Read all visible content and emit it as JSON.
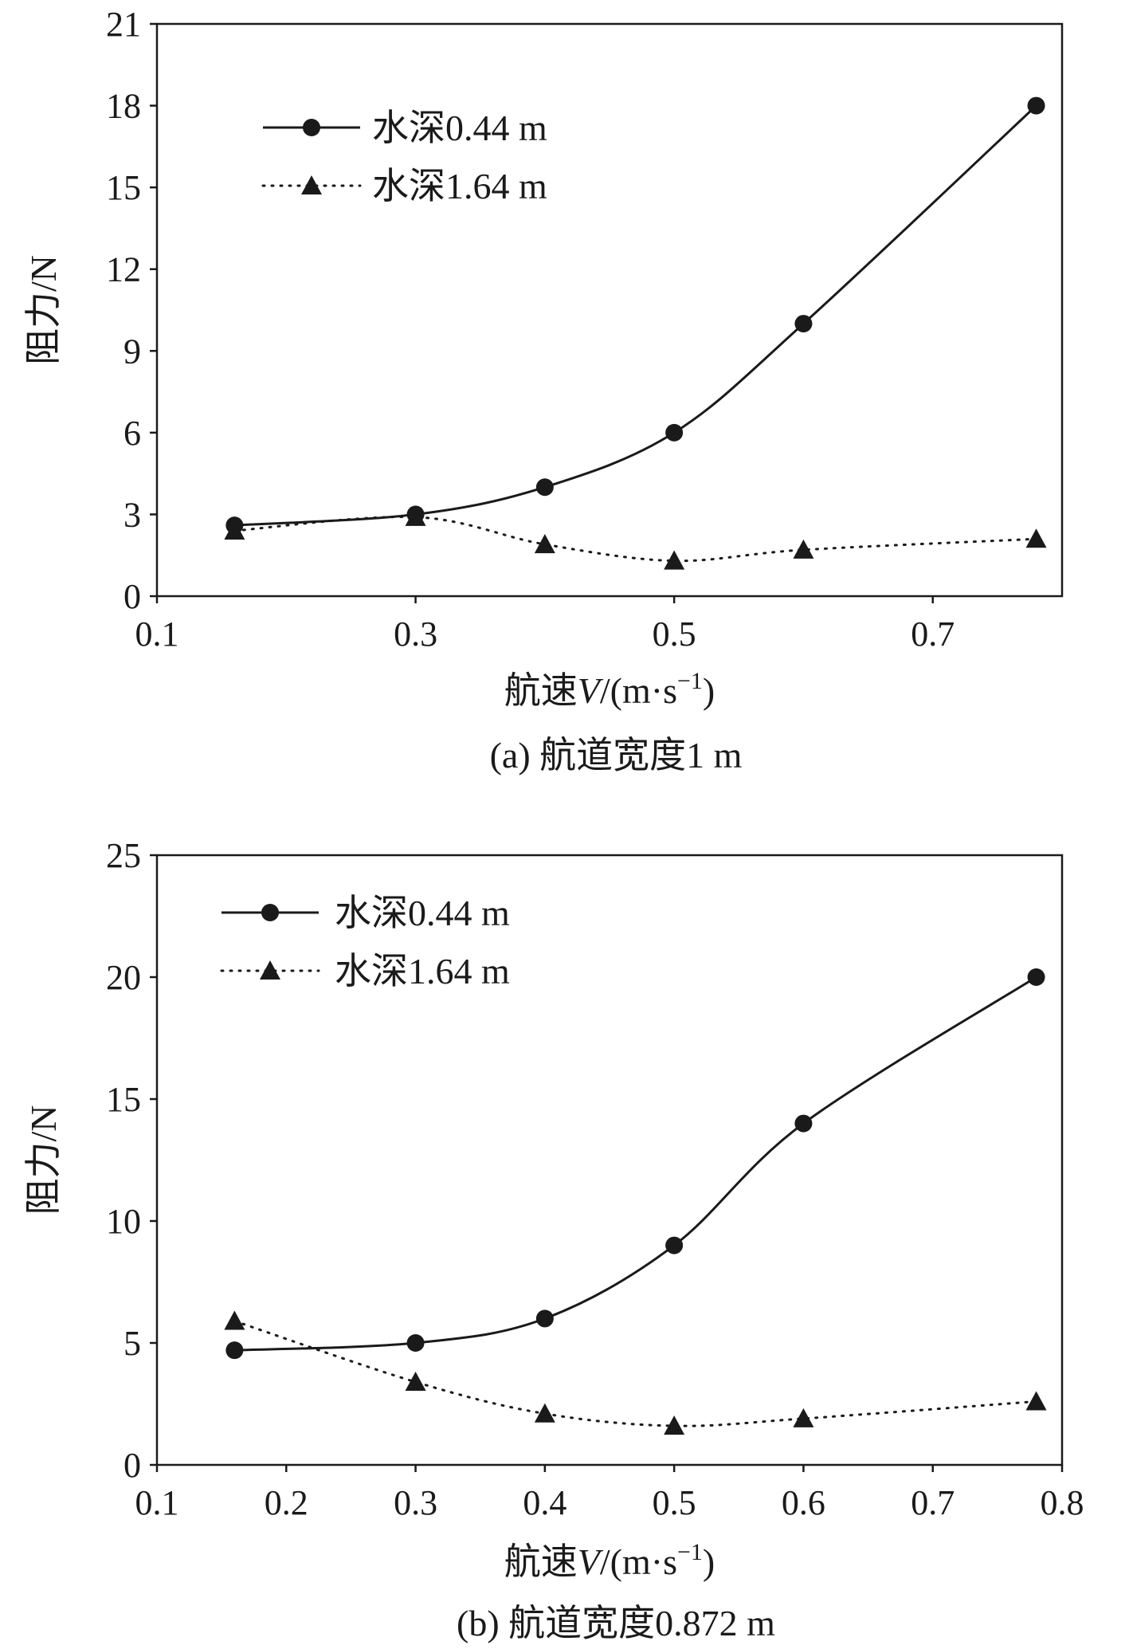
{
  "chart_data": [
    {
      "type": "line",
      "caption": "(a) 航道宽度1 m",
      "xlabel_prefix": "航速",
      "xlabel_var": "V",
      "xlabel_unit": "/(m·s",
      "xlabel_exp": "−1",
      "xlabel_close": ")",
      "ylabel": "阻力/N",
      "xlim": [
        0.1,
        0.8
      ],
      "ylim": [
        0,
        21
      ],
      "xticks": [
        0.1,
        0.3,
        0.5,
        0.7
      ],
      "xtick_labels": [
        "0.1",
        "0.3",
        "0.5",
        "0.7"
      ],
      "yticks": [
        0,
        3,
        6,
        9,
        12,
        15,
        18,
        21
      ],
      "ytick_labels": [
        "0",
        "3",
        "6",
        "9",
        "12",
        "15",
        "18",
        "21"
      ],
      "legend": "top-left",
      "series": [
        {
          "name": "水深0.44 m",
          "marker": "circle",
          "line": "solid",
          "smooth": true,
          "x": [
            0.16,
            0.3,
            0.4,
            0.5,
            0.6,
            0.78
          ],
          "y": [
            2.6,
            3.0,
            4.0,
            6.0,
            10.0,
            18.0
          ]
        },
        {
          "name": "水深1.64 m",
          "marker": "triangle",
          "line": "dotted",
          "smooth": true,
          "x": [
            0.16,
            0.3,
            0.4,
            0.5,
            0.6,
            0.78
          ],
          "y": [
            2.4,
            2.9,
            1.9,
            1.3,
            1.7,
            2.1
          ]
        }
      ]
    },
    {
      "type": "line",
      "caption": "(b) 航道宽度0.872 m",
      "xlabel_prefix": "航速",
      "xlabel_var": "V",
      "xlabel_unit": "/(m·s",
      "xlabel_exp": "−1",
      "xlabel_close": ")",
      "ylabel": "阻力/N",
      "xlim": [
        0.1,
        0.8
      ],
      "ylim": [
        0,
        25
      ],
      "xticks": [
        0.1,
        0.2,
        0.3,
        0.4,
        0.5,
        0.6,
        0.7,
        0.8
      ],
      "xtick_labels": [
        "0.1",
        "0.2",
        "0.3",
        "0.4",
        "0.5",
        "0.6",
        "0.7",
        "0.8"
      ],
      "yticks": [
        0,
        5,
        10,
        15,
        20,
        25
      ],
      "ytick_labels": [
        "0",
        "5",
        "10",
        "15",
        "20",
        "25"
      ],
      "legend": "top-left",
      "series": [
        {
          "name": "水深0.44 m",
          "marker": "circle",
          "line": "solid",
          "smooth": true,
          "x": [
            0.16,
            0.3,
            0.4,
            0.5,
            0.6,
            0.78
          ],
          "y": [
            4.7,
            5.0,
            6.0,
            9.0,
            14.0,
            20.0
          ]
        },
        {
          "name": "水深1.64 m",
          "marker": "triangle",
          "line": "dotted",
          "smooth": true,
          "x": [
            0.16,
            0.3,
            0.4,
            0.5,
            0.6,
            0.78
          ],
          "y": [
            5.9,
            3.4,
            2.1,
            1.6,
            1.9,
            2.6
          ]
        }
      ]
    }
  ]
}
